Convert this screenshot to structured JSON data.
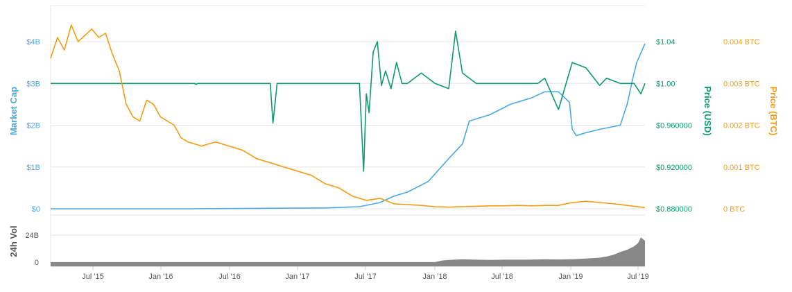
{
  "chart_data": {
    "type": "line",
    "colors": {
      "market_cap": "#4aa8e2",
      "price_usd": "#0c9a6e",
      "price_btc": "#f39c12",
      "volume": "#7a7a7a",
      "grid": "#e6e6e6",
      "axis_text_gray": "#555555"
    },
    "axes": {
      "left_title": "Market Cap",
      "right1_title": "Price (USD)",
      "right2_title": "Price (BTC)",
      "volume_title": "24h Vol"
    },
    "left_ticks": [
      "$4B",
      "$3B",
      "$2B",
      "$1B",
      "$0"
    ],
    "usd_ticks": [
      "$1.04",
      "$1.00",
      "$0.960000",
      "$0.920000",
      "$0.880000"
    ],
    "btc_ticks": [
      "0.004 BTC",
      "0.003 BTC",
      "0.002 BTC",
      "0.001 BTC",
      "0 BTC"
    ],
    "volume_ticks": [
      "24B",
      "0"
    ],
    "x_ticks": [
      "Jul '15",
      "Jan '16",
      "Jul '16",
      "Jan '17",
      "Jul '17",
      "Jan '18",
      "Jul '18",
      "Jan '19",
      "Jul '19"
    ],
    "x_range": [
      2015.0,
      2019.33
    ],
    "ylim_market_cap": [
      0,
      4
    ],
    "ylim_usd": [
      0.88,
      1.04
    ],
    "ylim_btc": [
      0,
      0.004
    ],
    "ylim_volume": [
      0,
      24
    ],
    "grid": true,
    "series": [
      {
        "name": "Market Cap",
        "axis": "market_cap",
        "x": [
          2015.0,
          2016.0,
          2016.5,
          2017.0,
          2017.25,
          2017.4,
          2017.5,
          2017.6,
          2017.75,
          2017.9,
          2018.0,
          2018.05,
          2018.15,
          2018.2,
          2018.35,
          2018.45,
          2018.5,
          2018.6,
          2018.7,
          2018.78,
          2018.8,
          2018.83,
          2018.9,
          2019.0,
          2019.15,
          2019.2,
          2019.24,
          2019.27,
          2019.33
        ],
        "values": [
          0.0,
          0.0,
          0.01,
          0.02,
          0.05,
          0.15,
          0.3,
          0.4,
          0.65,
          1.2,
          1.55,
          2.1,
          2.2,
          2.25,
          2.5,
          2.6,
          2.65,
          2.8,
          2.8,
          2.55,
          1.9,
          1.75,
          1.82,
          1.9,
          2.0,
          2.5,
          3.1,
          3.5,
          3.95
        ]
      },
      {
        "name": "Price (USD)",
        "axis": "usd",
        "x": [
          2015.0,
          2016.05,
          2016.06,
          2016.07,
          2016.12,
          2016.6,
          2016.62,
          2016.65,
          2017.25,
          2017.28,
          2017.3,
          2017.32,
          2017.35,
          2017.38,
          2017.41,
          2017.44,
          2017.48,
          2017.52,
          2017.56,
          2017.6,
          2017.7,
          2017.8,
          2017.9,
          2017.95,
          2018.0,
          2018.1,
          2018.2,
          2018.3,
          2018.45,
          2018.55,
          2018.6,
          2018.65,
          2018.7,
          2018.8,
          2018.9,
          2019.0,
          2019.05,
          2019.15,
          2019.25,
          2019.3,
          2019.33
        ],
        "values": [
          1.0,
          1.0,
          0.999,
          1.0,
          1.0,
          1.0,
          0.962,
          1.0,
          1.0,
          0.916,
          0.99,
          0.972,
          1.03,
          1.04,
          0.998,
          1.012,
          0.995,
          1.02,
          1.0,
          1.0,
          1.01,
          1.0,
          0.995,
          1.05,
          1.01,
          1.0,
          1.0,
          1.0,
          1.0,
          1.0,
          1.005,
          0.99,
          0.975,
          1.02,
          1.015,
          0.998,
          1.005,
          1.0,
          1.0,
          0.99,
          1.0
        ]
      },
      {
        "name": "Price (BTC)",
        "axis": "btc",
        "x": [
          2015.0,
          2015.05,
          2015.1,
          2015.15,
          2015.2,
          2015.3,
          2015.35,
          2015.4,
          2015.45,
          2015.5,
          2015.55,
          2015.6,
          2015.65,
          2015.7,
          2015.75,
          2015.8,
          2015.85,
          2015.9,
          2015.95,
          2016.0,
          2016.1,
          2016.2,
          2016.3,
          2016.4,
          2016.5,
          2016.6,
          2016.7,
          2016.8,
          2016.9,
          2017.0,
          2017.1,
          2017.2,
          2017.3,
          2017.4,
          2017.5,
          2017.6,
          2017.7,
          2017.8,
          2017.9,
          2018.0,
          2018.1,
          2018.2,
          2018.3,
          2018.4,
          2018.5,
          2018.6,
          2018.7,
          2018.8,
          2018.9,
          2019.0,
          2019.1,
          2019.2,
          2019.3,
          2019.33
        ],
        "values": [
          0.0036,
          0.0041,
          0.0038,
          0.0044,
          0.004,
          0.0043,
          0.0041,
          0.0042,
          0.0037,
          0.0033,
          0.0025,
          0.0022,
          0.0021,
          0.0026,
          0.0025,
          0.0022,
          0.0021,
          0.002,
          0.0017,
          0.0016,
          0.0015,
          0.0016,
          0.0015,
          0.0014,
          0.0012,
          0.0011,
          0.001,
          0.0009,
          0.0008,
          0.0006,
          0.0005,
          0.0003,
          0.0002,
          0.00025,
          0.00012,
          0.0001,
          8e-05,
          5e-05,
          4e-05,
          5e-05,
          6e-05,
          7e-05,
          7e-05,
          8e-05,
          7e-05,
          8e-05,
          8e-05,
          0.00015,
          0.00018,
          0.00015,
          0.00012,
          8e-05,
          4e-05,
          3e-05
        ]
      },
      {
        "name": "24h Vol",
        "axis": "volume",
        "x": [
          2015.0,
          2017.8,
          2017.85,
          2017.9,
          2018.0,
          2018.1,
          2018.2,
          2018.3,
          2018.4,
          2018.5,
          2018.6,
          2018.7,
          2018.8,
          2018.9,
          2019.0,
          2019.05,
          2019.1,
          2019.15,
          2019.2,
          2019.25,
          2019.28,
          2019.3,
          2019.33
        ],
        "values": [
          0,
          0,
          1.5,
          2.0,
          2.5,
          2.2,
          2.0,
          2.2,
          2.2,
          2.3,
          2.5,
          2.4,
          2.6,
          3.2,
          4.0,
          5.0,
          6.5,
          9.0,
          11.0,
          14.0,
          17.0,
          22.0,
          19.0
        ]
      }
    ]
  }
}
